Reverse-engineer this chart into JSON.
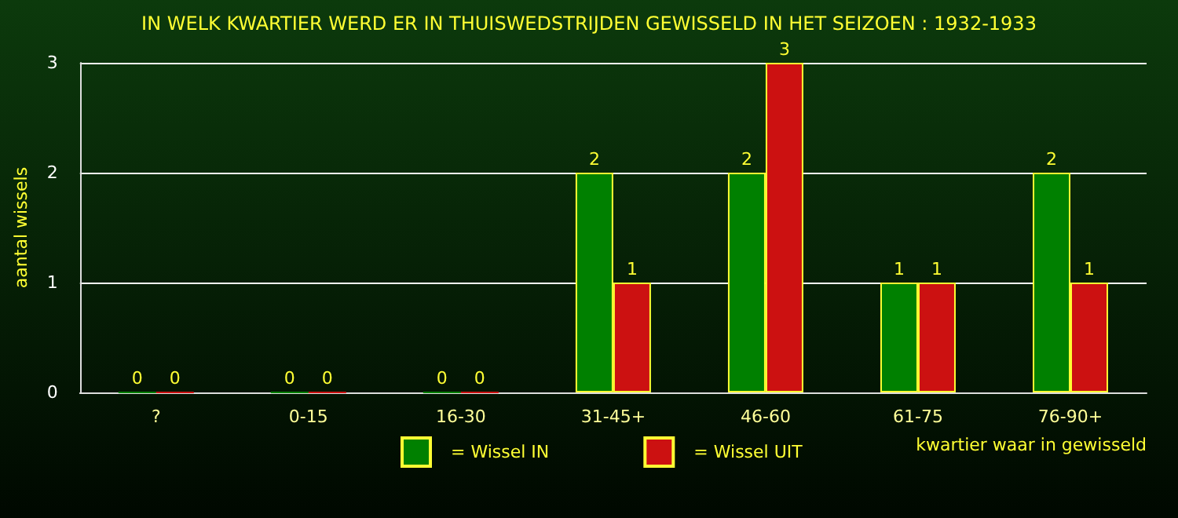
{
  "chart_data": {
    "type": "bar",
    "title": "IN WELK KWARTIER WERD ER IN THUISWEDSTRIJDEN GEWISSELD IN HET SEIZOEN : 1932-1933",
    "xlabel": "kwartier waar in gewisseld",
    "ylabel": "aantal wissels",
    "categories": [
      "?",
      "0-15",
      "16-30",
      "31-45+",
      "46-60",
      "61-75",
      "76-90+"
    ],
    "series": [
      {
        "name": "= Wissel IN",
        "color": "#008000",
        "values": [
          0,
          0,
          0,
          2,
          2,
          1,
          2
        ]
      },
      {
        "name": "= Wissel UIT",
        "color": "#cc1111",
        "values": [
          0,
          0,
          0,
          1,
          3,
          1,
          1
        ]
      }
    ],
    "ylim": [
      0,
      3
    ],
    "yticks": [
      0,
      1,
      2,
      3
    ],
    "grid": "y",
    "legend": "bottom",
    "data_labels": true
  }
}
